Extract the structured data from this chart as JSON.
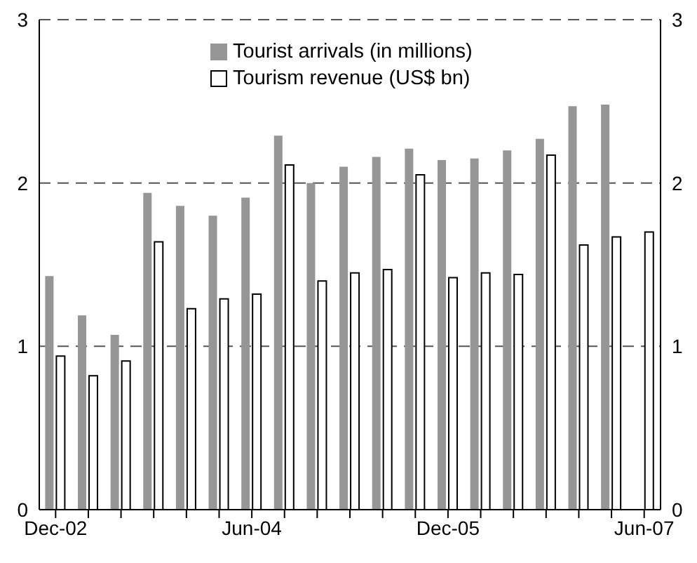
{
  "chart_data": {
    "type": "bar",
    "categories": [
      "Dec-02",
      null,
      null,
      null,
      null,
      null,
      "Jun-04",
      null,
      null,
      null,
      null,
      null,
      "Dec-05",
      null,
      null,
      null,
      null,
      null,
      "Jun-07"
    ],
    "series": [
      {
        "name": "Tourist arrivals (in millions)",
        "color": "#969696",
        "values": [
          1.43,
          1.19,
          1.07,
          1.94,
          1.86,
          1.8,
          1.91,
          2.29,
          2.0,
          2.1,
          2.16,
          2.21,
          2.14,
          2.15,
          2.2,
          2.27,
          2.47,
          2.48,
          null
        ]
      },
      {
        "name": "Tourism revenue (US$ bn)",
        "color": "#ffffff",
        "values": [
          0.94,
          0.82,
          0.91,
          1.64,
          1.23,
          1.29,
          1.32,
          2.11,
          1.4,
          1.45,
          1.47,
          2.05,
          1.42,
          1.45,
          1.44,
          2.17,
          1.62,
          1.67,
          1.7
        ]
      }
    ],
    "ylim": [
      0,
      3
    ],
    "yticks": [
      0,
      1,
      2,
      3
    ],
    "y2lim": [
      0,
      3
    ],
    "y2ticks": [
      0,
      1,
      2,
      3
    ],
    "grid": "y",
    "legend": "top"
  }
}
